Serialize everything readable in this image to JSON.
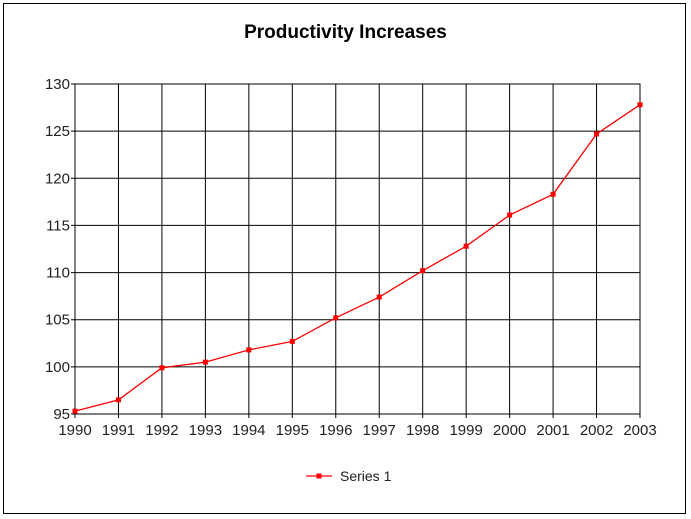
{
  "chart_data": {
    "type": "line",
    "title": "Productivity Increases",
    "xlabel": "",
    "ylabel": "",
    "categories": [
      "1990",
      "1991",
      "1992",
      "1993",
      "1994",
      "1995",
      "1996",
      "1997",
      "1998",
      "1999",
      "2000",
      "2001",
      "2002",
      "2003"
    ],
    "series": [
      {
        "name": "Series 1",
        "values": [
          95.3,
          96.5,
          99.9,
          100.5,
          101.8,
          102.7,
          105.2,
          107.4,
          110.2,
          112.8,
          116.1,
          118.3,
          124.7,
          127.8
        ]
      }
    ],
    "ylim": [
      95,
      130
    ],
    "yticks": [
      "95",
      "100",
      "105",
      "110",
      "115",
      "120",
      "125",
      "130"
    ],
    "grid": true,
    "legend_position": "bottom",
    "colors": {
      "series": "#ff0000",
      "grid": "#000000"
    }
  }
}
